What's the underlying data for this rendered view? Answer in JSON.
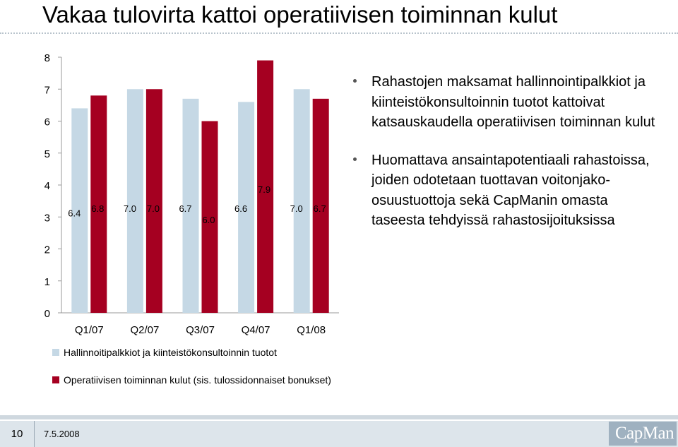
{
  "slide": {
    "title": "Vakaa tulovirta kattoi operatiivisen toiminnan kulut",
    "bullets": [
      "Rahastojen maksamat hallinnointipalkkiot ja kiinteistökonsultoinnin tuotot kattoivat katsauskaudella operatiivisen toiminnan kulut",
      "Huomattava ansaintapotentiaali rahastoissa, joiden odotetaan tuottavan voitonjako-osuustuottoja sekä CapManin omasta taseesta tehdyissä rahastosijoituksissa"
    ],
    "footer": {
      "page_number": "10",
      "date": "7.5.2008",
      "logo_text": "CapMan"
    }
  },
  "colors": {
    "series1": "#c5d8e5",
    "series2": "#a50021",
    "footer_bg": "#dde5eb",
    "logo_bg": "#9fb1c0"
  },
  "chart_data": {
    "type": "bar",
    "categories": [
      "Q1/07",
      "Q2/07",
      "Q3/07",
      "Q4/07",
      "Q1/08"
    ],
    "series": [
      {
        "name": "Hallinnoitipalkkiot ja kiinteistökonsultoinnin tuotot",
        "values": [
          6.4,
          7.0,
          6.7,
          6.6,
          7.0
        ],
        "labels": [
          "6.4",
          "7.0",
          "6.7",
          "6.6",
          "7.0"
        ]
      },
      {
        "name": "Operatiivisen toiminnan kulut (sis. tulossidonnaiset bonukset)",
        "values": [
          6.8,
          7.0,
          6.0,
          7.9,
          6.7
        ],
        "labels": [
          "6.8",
          "7.0",
          "6.0",
          "7.9",
          "6.7"
        ]
      }
    ],
    "yticks": [
      "0",
      "1",
      "2",
      "3",
      "4",
      "5",
      "6",
      "7",
      "8"
    ],
    "ylim": [
      0,
      8
    ],
    "grid": false,
    "legend": "bottom"
  }
}
